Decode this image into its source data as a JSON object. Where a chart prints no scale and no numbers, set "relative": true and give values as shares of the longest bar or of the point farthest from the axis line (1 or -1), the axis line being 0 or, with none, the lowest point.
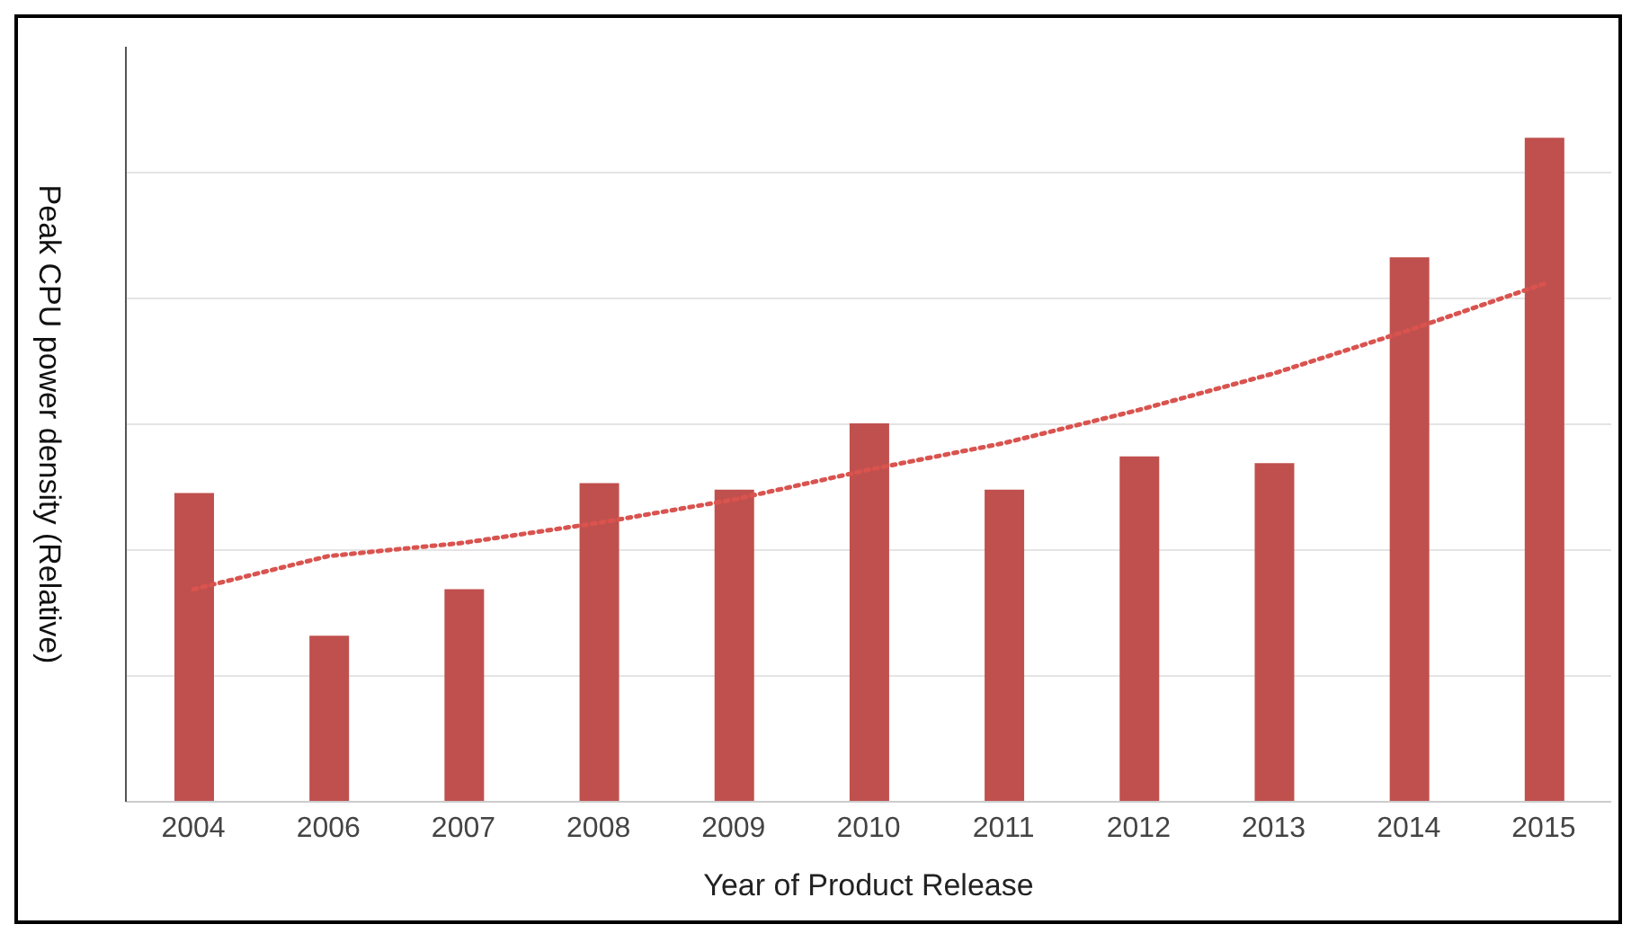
{
  "chart_data": {
    "type": "bar",
    "relative": true,
    "xlabel": "Year of Product Release",
    "ylabel": "Peak CPU power density (Relative)",
    "grid": "y",
    "categories": [
      "2004",
      "2006",
      "2007",
      "2008",
      "2009",
      "2010",
      "2011",
      "2012",
      "2013",
      "2014",
      "2015"
    ],
    "series": [
      {
        "color": "#c0504d",
        "values": [
          0.465,
          0.25,
          0.32,
          0.48,
          0.47,
          0.57,
          0.47,
          0.52,
          0.51,
          0.82,
          1
        ]
      },
      {
        "type": "line",
        "color": "#d9534f",
        "line_style": "dotted",
        "marker": "none",
        "values": [
          0.32,
          0.37,
          0.39,
          0.42,
          0.455,
          0.5,
          0.54,
          0.59,
          0.645,
          0.71,
          0.78
        ]
      }
    ]
  }
}
